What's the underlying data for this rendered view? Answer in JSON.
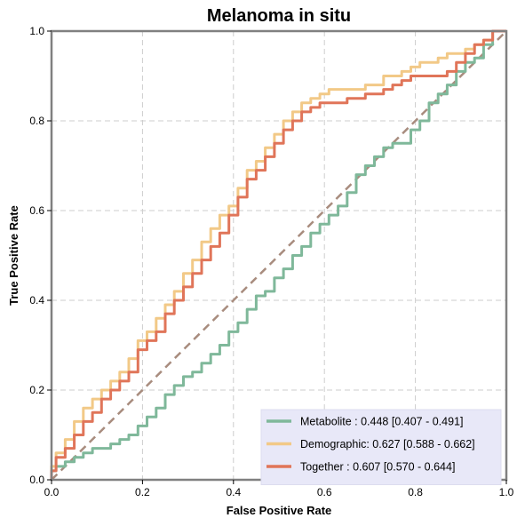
{
  "chart_data": {
    "type": "line",
    "title": "Melanoma in situ",
    "xlabel": "False Positive Rate",
    "ylabel": "True Positive Rate",
    "xlim": [
      0,
      1
    ],
    "ylim": [
      0,
      1
    ],
    "xticks": [
      "0.0",
      "0.2",
      "0.4",
      "0.6",
      "0.8",
      "1.0"
    ],
    "yticks": [
      "0.0",
      "0.2",
      "0.4",
      "0.6",
      "0.8",
      "1.0"
    ],
    "grid": true,
    "legend_position": "lower-right",
    "reference_line": {
      "x": [
        0,
        1
      ],
      "y": [
        0,
        1
      ],
      "color": "#A88C7E",
      "style": "dashed"
    },
    "series": [
      {
        "name": "Metabolite",
        "legend_label": "Metabolite      : 0.448 [0.407 - 0.491]",
        "color": "#7FB89A",
        "x": [
          0,
          0.01,
          0.03,
          0.05,
          0.07,
          0.09,
          0.11,
          0.13,
          0.15,
          0.17,
          0.19,
          0.21,
          0.23,
          0.25,
          0.27,
          0.29,
          0.31,
          0.33,
          0.35,
          0.37,
          0.39,
          0.41,
          0.43,
          0.45,
          0.47,
          0.49,
          0.51,
          0.53,
          0.55,
          0.57,
          0.59,
          0.61,
          0.63,
          0.65,
          0.67,
          0.69,
          0.71,
          0.73,
          0.75,
          0.77,
          0.79,
          0.81,
          0.83,
          0.85,
          0.87,
          0.89,
          0.91,
          0.93,
          0.95,
          0.97,
          1.0
        ],
        "y": [
          0,
          0.02,
          0.03,
          0.04,
          0.05,
          0.06,
          0.07,
          0.07,
          0.08,
          0.09,
          0.1,
          0.12,
          0.14,
          0.16,
          0.19,
          0.21,
          0.23,
          0.24,
          0.26,
          0.28,
          0.3,
          0.33,
          0.35,
          0.38,
          0.41,
          0.42,
          0.45,
          0.47,
          0.5,
          0.52,
          0.55,
          0.57,
          0.59,
          0.61,
          0.64,
          0.68,
          0.7,
          0.72,
          0.74,
          0.75,
          0.75,
          0.78,
          0.8,
          0.84,
          0.86,
          0.88,
          0.91,
          0.93,
          0.94,
          0.97,
          1.0
        ]
      },
      {
        "name": "Demographic",
        "legend_label": "Demographic: 0.627 [0.588 - 0.662]",
        "color": "#F2C987",
        "x": [
          0,
          0.01,
          0.03,
          0.05,
          0.07,
          0.09,
          0.11,
          0.13,
          0.15,
          0.17,
          0.19,
          0.21,
          0.23,
          0.25,
          0.27,
          0.29,
          0.31,
          0.33,
          0.35,
          0.37,
          0.39,
          0.41,
          0.43,
          0.45,
          0.47,
          0.49,
          0.51,
          0.53,
          0.55,
          0.57,
          0.59,
          0.61,
          0.63,
          0.65,
          0.67,
          0.69,
          0.71,
          0.73,
          0.75,
          0.77,
          0.79,
          0.81,
          0.83,
          0.85,
          0.87,
          0.89,
          0.91,
          0.93,
          0.95,
          0.97,
          1.0
        ],
        "y": [
          0,
          0.03,
          0.06,
          0.09,
          0.13,
          0.16,
          0.18,
          0.2,
          0.22,
          0.24,
          0.27,
          0.31,
          0.33,
          0.36,
          0.39,
          0.42,
          0.46,
          0.49,
          0.53,
          0.56,
          0.59,
          0.61,
          0.65,
          0.69,
          0.71,
          0.74,
          0.77,
          0.8,
          0.82,
          0.84,
          0.85,
          0.86,
          0.87,
          0.87,
          0.87,
          0.87,
          0.88,
          0.88,
          0.9,
          0.9,
          0.91,
          0.92,
          0.93,
          0.93,
          0.94,
          0.95,
          0.95,
          0.96,
          0.97,
          0.98,
          1.0
        ]
      },
      {
        "name": "Together",
        "legend_label": "Together      : 0.607 [0.570 - 0.644]",
        "color": "#E07559",
        "x": [
          0,
          0.01,
          0.03,
          0.05,
          0.07,
          0.09,
          0.11,
          0.13,
          0.15,
          0.17,
          0.19,
          0.21,
          0.23,
          0.25,
          0.27,
          0.29,
          0.31,
          0.33,
          0.35,
          0.37,
          0.39,
          0.41,
          0.43,
          0.45,
          0.47,
          0.49,
          0.51,
          0.53,
          0.55,
          0.57,
          0.59,
          0.61,
          0.63,
          0.65,
          0.67,
          0.69,
          0.71,
          0.73,
          0.75,
          0.77,
          0.79,
          0.81,
          0.83,
          0.85,
          0.87,
          0.89,
          0.91,
          0.93,
          0.95,
          0.97,
          1.0
        ],
        "y": [
          0,
          0.02,
          0.05,
          0.07,
          0.1,
          0.13,
          0.15,
          0.18,
          0.2,
          0.22,
          0.24,
          0.29,
          0.31,
          0.33,
          0.37,
          0.4,
          0.43,
          0.46,
          0.49,
          0.52,
          0.55,
          0.59,
          0.63,
          0.67,
          0.69,
          0.72,
          0.75,
          0.78,
          0.8,
          0.82,
          0.83,
          0.84,
          0.84,
          0.84,
          0.85,
          0.85,
          0.86,
          0.86,
          0.87,
          0.88,
          0.89,
          0.9,
          0.9,
          0.9,
          0.9,
          0.91,
          0.93,
          0.95,
          0.97,
          0.98,
          1.0
        ]
      }
    ]
  }
}
